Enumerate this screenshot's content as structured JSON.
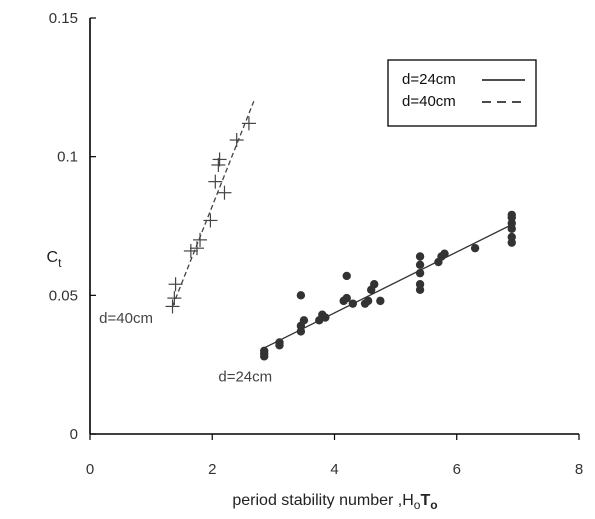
{
  "chart_data": {
    "type": "scatter",
    "xlabel": "period stability number ,H",
    "xlabel_sub1": "o",
    "xlabel_mid": "T",
    "xlabel_sub2": "o",
    "ylabel": "C",
    "ylabel_sub": "t",
    "xlim": [
      0,
      8
    ],
    "ylim": [
      0,
      0.15
    ],
    "xticks": [
      0,
      2,
      4,
      6,
      8
    ],
    "xtick_labels": [
      "0",
      "2",
      "4",
      "6",
      "8"
    ],
    "yticks": [
      0,
      0.05,
      0.1,
      0.15
    ],
    "ytick_labels": [
      "0",
      "0.05",
      "0.1",
      "0.15"
    ],
    "grid": false,
    "legend_position": "top-right",
    "series": [
      {
        "name": "d=24cm",
        "marker": "filled-circle",
        "line_style": "solid",
        "color": "#333333",
        "points": [
          [
            2.85,
            0.028
          ],
          [
            2.85,
            0.03
          ],
          [
            2.85,
            0.029
          ],
          [
            3.1,
            0.032
          ],
          [
            3.1,
            0.033
          ],
          [
            3.45,
            0.037
          ],
          [
            3.45,
            0.039
          ],
          [
            3.5,
            0.041
          ],
          [
            3.45,
            0.05
          ],
          [
            3.75,
            0.041
          ],
          [
            3.8,
            0.043
          ],
          [
            3.85,
            0.042
          ],
          [
            4.15,
            0.048
          ],
          [
            4.2,
            0.049
          ],
          [
            4.2,
            0.057
          ],
          [
            4.3,
            0.047
          ],
          [
            4.5,
            0.047
          ],
          [
            4.55,
            0.048
          ],
          [
            4.6,
            0.052
          ],
          [
            4.65,
            0.054
          ],
          [
            4.75,
            0.048
          ],
          [
            5.4,
            0.052
          ],
          [
            5.4,
            0.054
          ],
          [
            5.4,
            0.058
          ],
          [
            5.4,
            0.061
          ],
          [
            5.4,
            0.064
          ],
          [
            5.7,
            0.062
          ],
          [
            5.75,
            0.064
          ],
          [
            5.8,
            0.065
          ],
          [
            6.3,
            0.067
          ],
          [
            6.9,
            0.069
          ],
          [
            6.9,
            0.071
          ],
          [
            6.9,
            0.074
          ],
          [
            6.9,
            0.076
          ],
          [
            6.9,
            0.078
          ],
          [
            6.9,
            0.079
          ]
        ],
        "fit_line": [
          [
            2.8,
            0.0305
          ],
          [
            6.9,
            0.0755
          ]
        ]
      },
      {
        "name": "d=40cm",
        "marker": "plus",
        "line_style": "dashed",
        "color": "#444444",
        "points": [
          [
            1.35,
            0.046
          ],
          [
            1.38,
            0.049
          ],
          [
            1.4,
            0.054
          ],
          [
            1.65,
            0.066
          ],
          [
            1.75,
            0.067
          ],
          [
            1.8,
            0.07
          ],
          [
            1.97,
            0.077
          ],
          [
            2.05,
            0.091
          ],
          [
            2.1,
            0.097
          ],
          [
            2.12,
            0.099
          ],
          [
            2.2,
            0.087
          ],
          [
            2.4,
            0.106
          ],
          [
            2.6,
            0.112
          ]
        ],
        "fit_line": [
          [
            1.35,
            0.046
          ],
          [
            2.68,
            0.12
          ]
        ]
      }
    ],
    "annotations": [
      {
        "text": "d=40cm",
        "x": 0.15,
        "y": 0.04
      },
      {
        "text": "d=24cm",
        "x": 2.1,
        "y": 0.019
      }
    ]
  }
}
